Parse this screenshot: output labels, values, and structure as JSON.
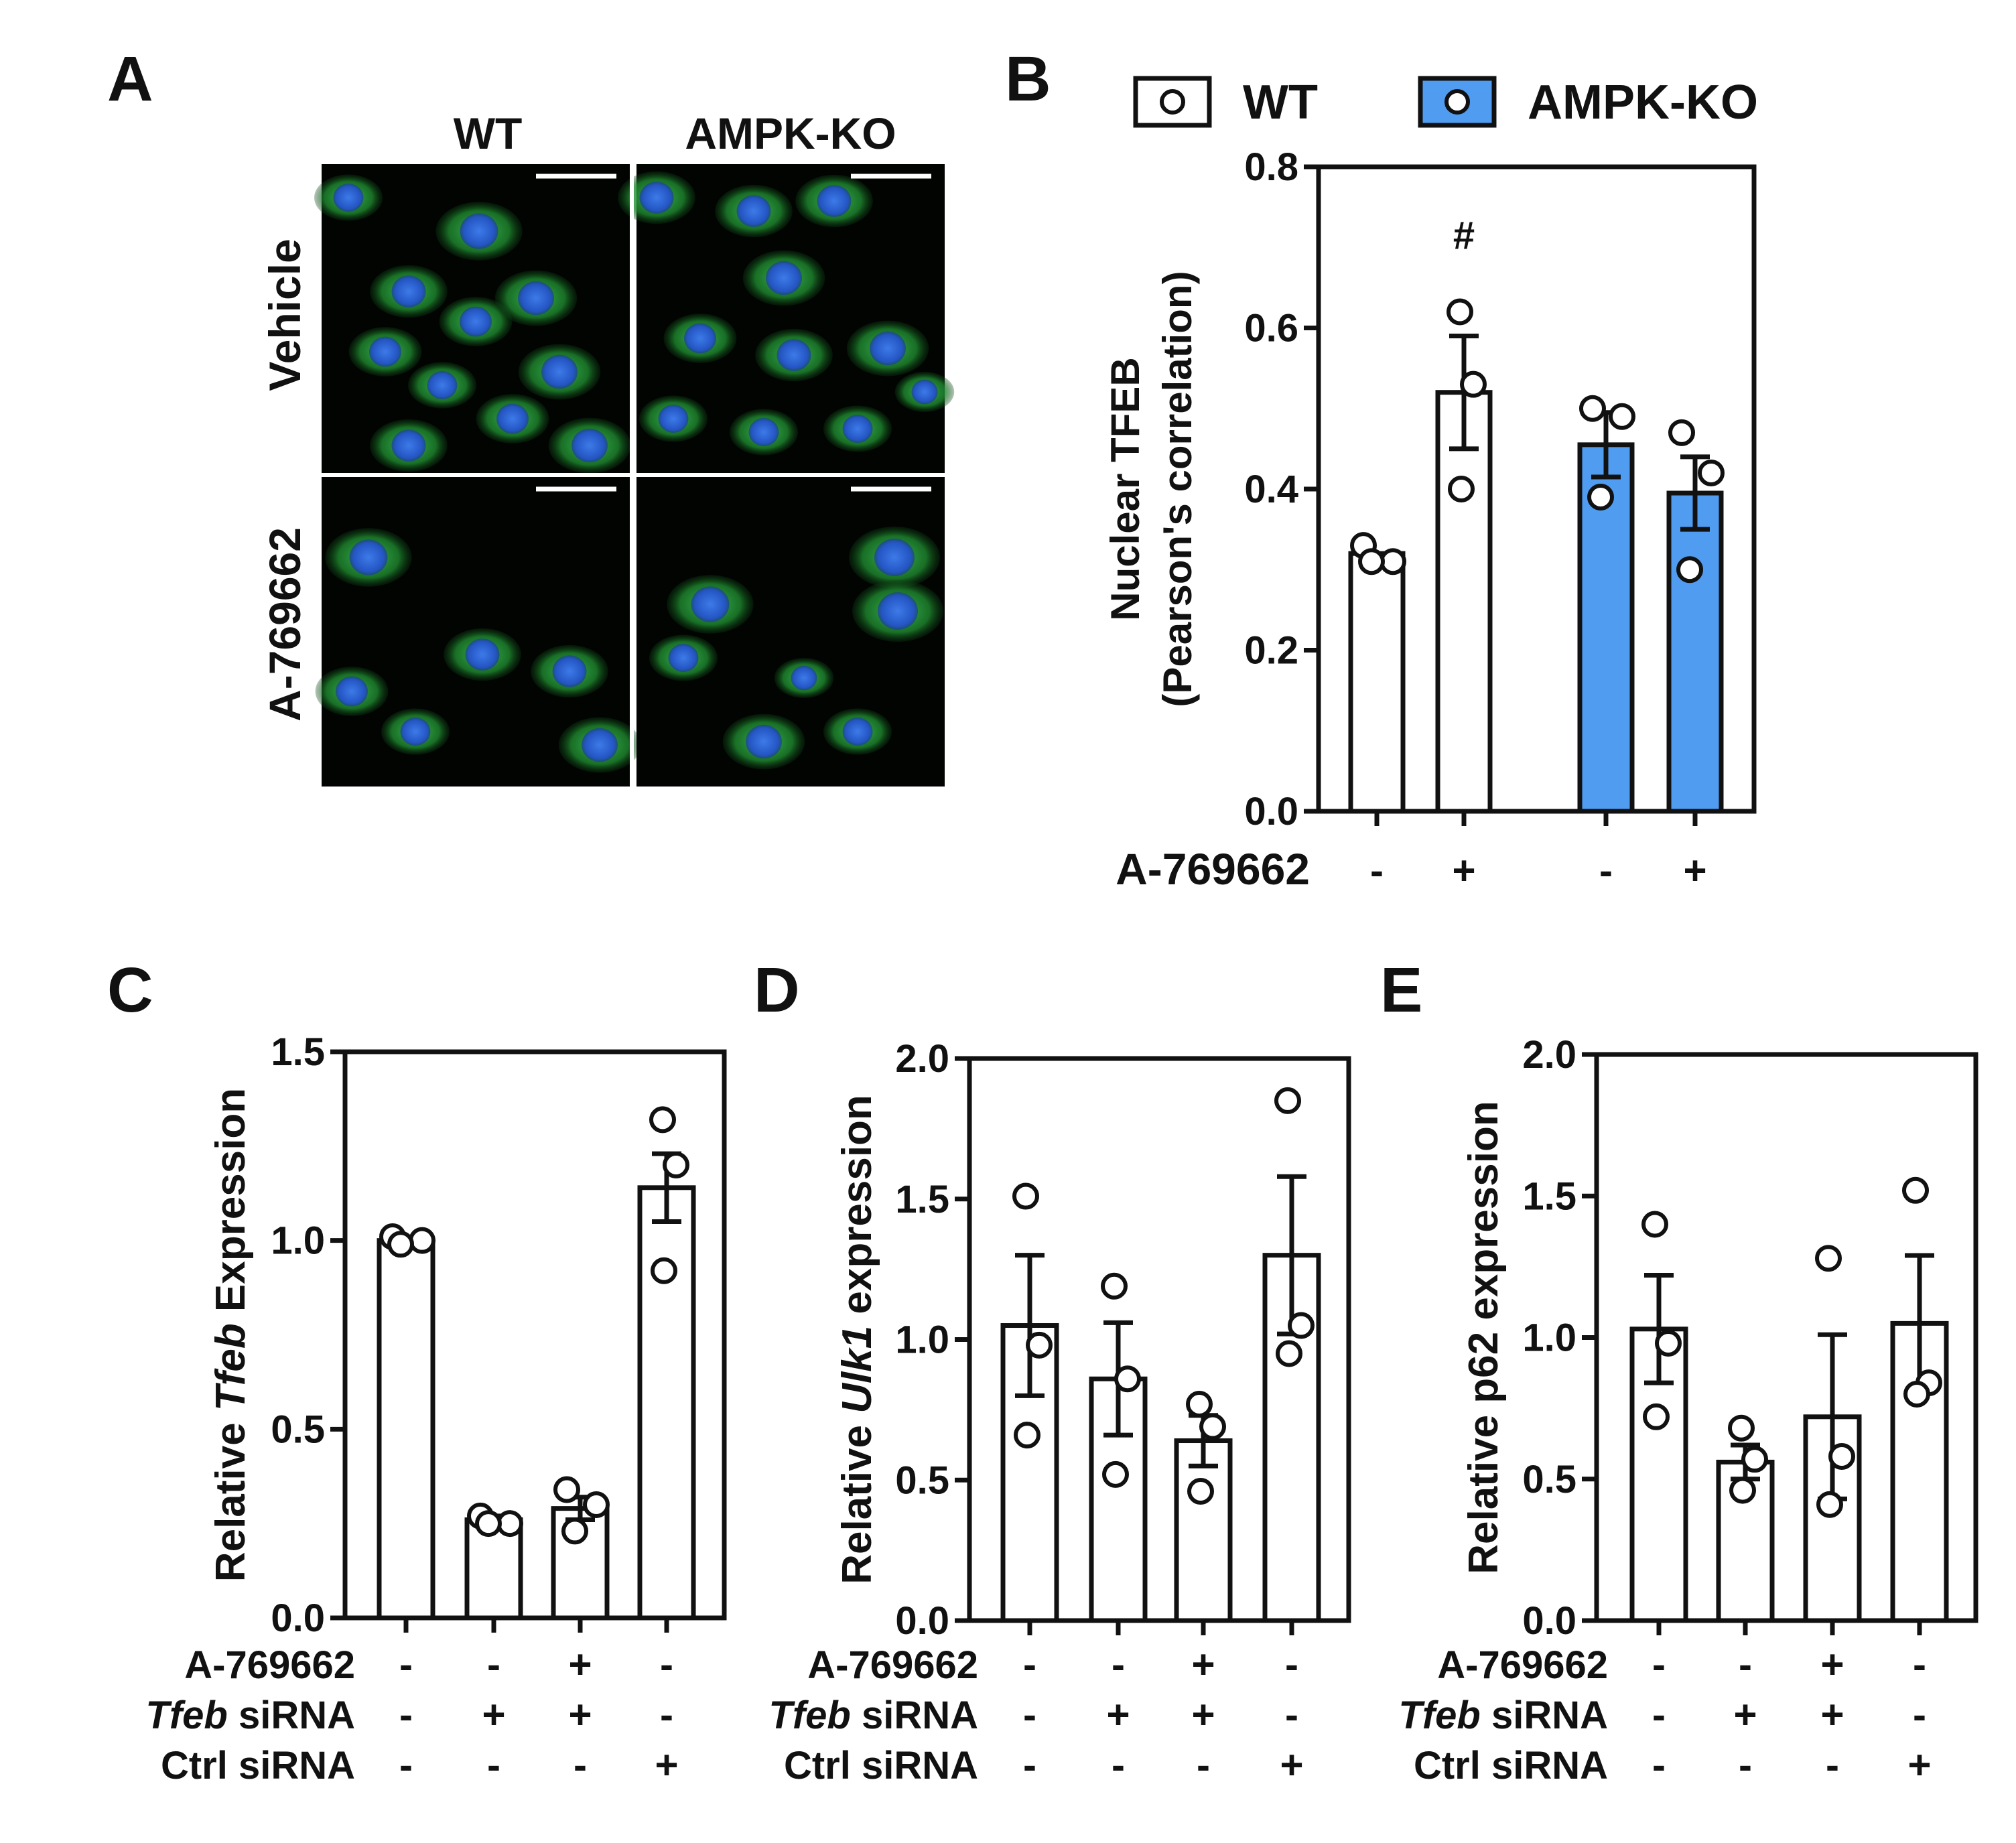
{
  "panel_a": {
    "letter": "A",
    "columns": [
      "WT",
      "AMPK-KO"
    ],
    "rows": [
      "Vehicle",
      "A-769662"
    ]
  },
  "chart_data": [
    {
      "panel": "B",
      "type": "bar",
      "ylabel": [
        "Nuclear TFEB",
        "(Pearson's correlation)"
      ],
      "ylim": [
        0,
        0.8
      ],
      "yticks": [
        "0.0",
        "0.2",
        "0.4",
        "0.6",
        "0.8"
      ],
      "legend": [
        {
          "name": "WT",
          "color": "#ffffff"
        },
        {
          "name": "AMPK-KO",
          "color": "#4f9cf0"
        }
      ],
      "legend_position": "top",
      "conditions": [
        {
          "label": "A-769662",
          "values": [
            "-",
            "+",
            "-",
            "+"
          ]
        }
      ],
      "bars": [
        {
          "group": "WT",
          "value": 0.32,
          "sem": 0.0,
          "points": [
            0.33,
            0.31,
            0.31
          ]
        },
        {
          "group": "WT",
          "value": 0.52,
          "sem": 0.07,
          "points": [
            0.62,
            0.53,
            0.4
          ],
          "annotation": "#"
        },
        {
          "group": "AMPK-KO",
          "value": 0.455,
          "sem": 0.04,
          "points": [
            0.5,
            0.49,
            0.39
          ]
        },
        {
          "group": "AMPK-KO",
          "value": 0.395,
          "sem": 0.045,
          "points": [
            0.47,
            0.42,
            0.3
          ]
        }
      ]
    },
    {
      "panel": "C",
      "type": "bar",
      "ylabel": [
        "Relative ",
        "Tfeb",
        " Expression"
      ],
      "ylim": [
        0,
        1.5
      ],
      "yticks": [
        "0.0",
        "0.5",
        "1.0",
        "1.5"
      ],
      "conditions": [
        {
          "label": "A-769662",
          "italic_prefix": "",
          "values": [
            "-",
            "-",
            "+",
            "-"
          ]
        },
        {
          "label": " siRNA",
          "italic_prefix": "Tfeb",
          "values": [
            "-",
            "+",
            "+",
            "-"
          ]
        },
        {
          "label": "Ctrl siRNA",
          "italic_prefix": "",
          "values": [
            "-",
            "-",
            "-",
            "+"
          ]
        }
      ],
      "bars": [
        {
          "value": 1.0,
          "sem": 0.0,
          "points": [
            1.01,
            1.0,
            0.99
          ]
        },
        {
          "value": 0.26,
          "sem": 0.01,
          "points": [
            0.27,
            0.25,
            0.25
          ]
        },
        {
          "value": 0.29,
          "sem": 0.03,
          "points": [
            0.34,
            0.3,
            0.23
          ]
        },
        {
          "value": 1.14,
          "sem": 0.09,
          "points": [
            1.32,
            1.2,
            0.92
          ]
        }
      ]
    },
    {
      "panel": "D",
      "type": "bar",
      "ylabel": [
        "Relative ",
        "Ulk1",
        " expression"
      ],
      "ylim": [
        0,
        2.0
      ],
      "yticks": [
        "0.0",
        "0.5",
        "1.0",
        "1.5",
        "2.0"
      ],
      "conditions": [
        {
          "label": "A-769662",
          "italic_prefix": "",
          "values": [
            "-",
            "-",
            "+",
            "-"
          ]
        },
        {
          "label": " siRNA",
          "italic_prefix": "Tfeb",
          "values": [
            "-",
            "+",
            "+",
            "-"
          ]
        },
        {
          "label": "Ctrl siRNA",
          "italic_prefix": "",
          "values": [
            "-",
            "-",
            "-",
            "+"
          ]
        }
      ],
      "bars": [
        {
          "value": 1.05,
          "sem": 0.25,
          "points": [
            1.51,
            0.98,
            0.66
          ]
        },
        {
          "value": 0.86,
          "sem": 0.2,
          "points": [
            1.19,
            0.86,
            0.52
          ]
        },
        {
          "value": 0.64,
          "sem": 0.09,
          "points": [
            0.77,
            0.69,
            0.46
          ]
        },
        {
          "value": 1.3,
          "sem": 0.28,
          "points": [
            1.85,
            1.05,
            0.95
          ]
        }
      ]
    },
    {
      "panel": "E",
      "type": "bar",
      "ylabel": [
        "Relative p62 expression"
      ],
      "ylim": [
        0,
        2.0
      ],
      "yticks": [
        "0.0",
        "0.5",
        "1.0",
        "1.5",
        "2.0"
      ],
      "conditions": [
        {
          "label": "A-769662",
          "italic_prefix": "",
          "values": [
            "-",
            "-",
            "+",
            "-"
          ]
        },
        {
          "label": " siRNA",
          "italic_prefix": "Tfeb",
          "values": [
            "-",
            "+",
            "+",
            "-"
          ]
        },
        {
          "label": "Ctrl siRNA",
          "italic_prefix": "",
          "values": [
            "-",
            "-",
            "-",
            "+"
          ]
        }
      ],
      "bars": [
        {
          "value": 1.03,
          "sem": 0.19,
          "points": [
            1.4,
            0.98,
            0.72
          ]
        },
        {
          "value": 0.56,
          "sem": 0.06,
          "points": [
            0.68,
            0.57,
            0.46
          ]
        },
        {
          "value": 0.72,
          "sem": 0.29,
          "points": [
            1.28,
            0.58,
            0.41
          ]
        },
        {
          "value": 1.05,
          "sem": 0.24,
          "points": [
            1.52,
            0.84,
            0.8
          ]
        }
      ]
    }
  ]
}
